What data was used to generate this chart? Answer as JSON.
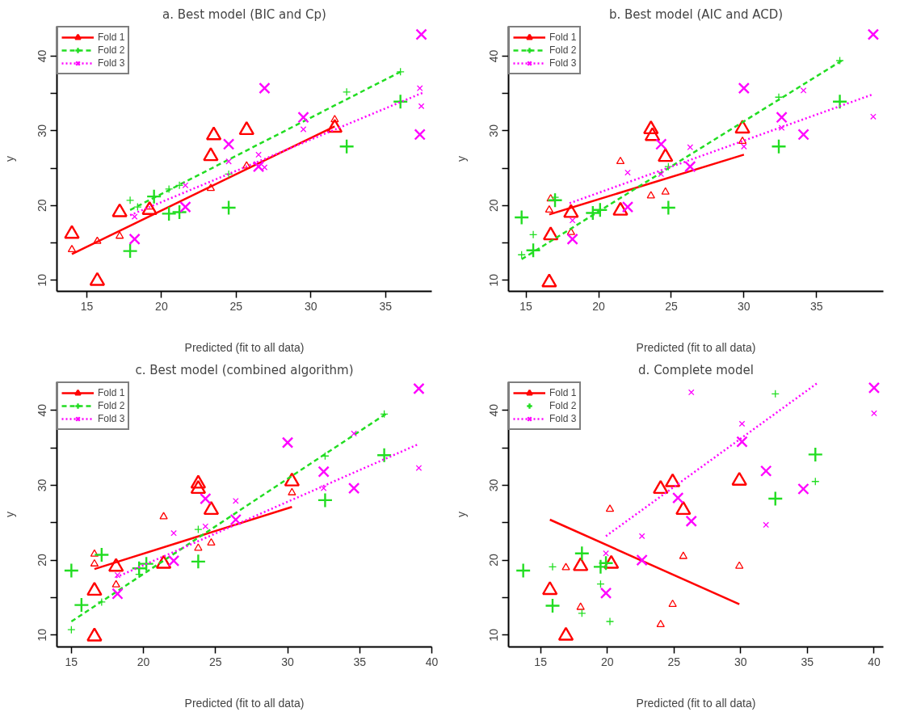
{
  "chart_data": [
    {
      "type": "scatter",
      "title": "a. Best model (BIC and Cp)",
      "xlabel": "Predicted (fit to all data)",
      "ylabel": "y",
      "xlim": [
        13.0,
        38.1
      ],
      "ylim": [
        8.5,
        44
      ],
      "xticks": [
        15,
        20,
        25,
        30,
        35
      ],
      "yticks": [
        10,
        {
          "value": 15,
          "label": null
        },
        20,
        {
          "value": 25,
          "label": null
        },
        30,
        {
          "value": 35,
          "label": null
        },
        40
      ],
      "legend": "top left",
      "grid": false,
      "series": [
        {
          "name": "Fold 1",
          "color": "#ff0000",
          "marker": "triangle",
          "x": [
            14.0,
            15.7,
            17.2,
            19.2,
            23.3,
            23.5,
            25.7,
            31.6
          ],
          "values": [
            16.2,
            9.9,
            19.1,
            19.4,
            26.6,
            29.4,
            30.1,
            30.4
          ]
        },
        {
          "color": "#ff0000",
          "marker": "triangle",
          "x": [
            14.0,
            15.7,
            17.2,
            19.2,
            23.3,
            25.7,
            31.6
          ],
          "values": [
            14.1,
            15.2,
            15.9,
            19.8,
            22.3,
            25.3,
            31.5
          ]
        },
        {
          "type": "line",
          "color": "#ff0000",
          "line_style": "solid",
          "x": [
            14.0,
            31.6
          ],
          "values": [
            13.5,
            30.6
          ]
        },
        {
          "name": "Fold 2",
          "color": "#22dd22",
          "marker": "plus",
          "x": [
            17.9,
            19.5,
            20.5,
            21.2,
            24.5,
            32.4,
            36.0
          ],
          "values": [
            13.9,
            21.2,
            18.9,
            19.1,
            19.7,
            27.9,
            33.9
          ]
        },
        {
          "color": "#22dd22",
          "marker": "plus",
          "x": [
            17.9,
            18.4,
            20.5,
            21.2,
            24.5,
            32.4,
            36.0
          ],
          "values": [
            20.7,
            19.8,
            22.2,
            22.7,
            24.2,
            35.2,
            37.9
          ]
        },
        {
          "type": "line",
          "color": "#22dd22",
          "line_style": "dashed",
          "x": [
            17.9,
            36.2
          ],
          "values": [
            19.4,
            38.1
          ]
        },
        {
          "name": "Fold 3",
          "color": "#ff00ff",
          "marker": "x",
          "x": [
            18.2,
            21.6,
            24.5,
            26.9,
            26.5,
            29.5,
            37.4,
            37.3
          ],
          "values": [
            15.5,
            19.8,
            28.2,
            35.7,
            25.2,
            31.8,
            42.9,
            29.5
          ]
        },
        {
          "color": "#ff00ff",
          "marker": "x",
          "x": [
            18.2,
            21.6,
            24.5,
            26.5,
            26.9,
            29.5,
            37.3,
            37.4
          ],
          "values": [
            18.5,
            22.7,
            25.9,
            26.8,
            25.1,
            30.2,
            35.7,
            33.3
          ]
        },
        {
          "type": "line",
          "color": "#ff00ff",
          "line_style": "dotted",
          "x": [
            17.9,
            37.5
          ],
          "values": [
            18.7,
            35.1
          ]
        }
      ]
    },
    {
      "type": "scatter",
      "title": "b. Best model (AIC and ACD)",
      "xlabel": "Predicted (fit to all data)",
      "ylabel": "y",
      "xlim": [
        13.8,
        39.6
      ],
      "ylim": [
        8.5,
        44
      ],
      "xticks": [
        15,
        20,
        25,
        30,
        35
      ],
      "yticks": [
        10,
        {
          "value": 15,
          "label": null
        },
        20,
        {
          "value": 25,
          "label": null
        },
        30,
        {
          "value": 35,
          "label": null
        },
        40
      ],
      "legend": "top left",
      "grid": false,
      "series": [
        {
          "name": "Fold 1",
          "color": "#ff0000",
          "marker": "triangle",
          "x": [
            16.6,
            16.7,
            18.1,
            21.5,
            23.6,
            23.7,
            24.6,
            29.9
          ],
          "values": [
            9.7,
            16.0,
            19.0,
            19.3,
            30.2,
            29.3,
            26.5,
            30.3
          ]
        },
        {
          "color": "#ff0000",
          "marker": "triangle",
          "x": [
            16.6,
            16.7,
            18.1,
            21.5,
            23.6,
            24.6,
            29.9
          ],
          "values": [
            19.4,
            20.9,
            16.4,
            25.9,
            21.3,
            21.8,
            28.6
          ]
        },
        {
          "type": "line",
          "color": "#ff0000",
          "line_style": "solid",
          "x": [
            16.6,
            30.0
          ],
          "values": [
            18.8,
            26.8
          ]
        },
        {
          "name": "Fold 2",
          "color": "#22dd22",
          "marker": "plus",
          "x": [
            14.7,
            15.5,
            17.0,
            19.6,
            20.1,
            24.8,
            32.4,
            36.6
          ],
          "values": [
            18.4,
            14.0,
            20.7,
            19.0,
            19.4,
            19.7,
            27.9,
            33.9
          ]
        },
        {
          "color": "#22dd22",
          "marker": "plus",
          "x": [
            14.7,
            15.5,
            17.0,
            24.8,
            32.4,
            36.6
          ],
          "values": [
            13.4,
            16.1,
            21.1,
            25.2,
            34.5,
            39.4
          ]
        },
        {
          "type": "line",
          "color": "#22dd22",
          "line_style": "dashed",
          "x": [
            14.7,
            36.9
          ],
          "values": [
            12.8,
            39.6
          ]
        },
        {
          "name": "Fold 3",
          "color": "#ff00ff",
          "marker": "x",
          "x": [
            18.2,
            22.0,
            24.3,
            26.3,
            30.0,
            32.6,
            34.1,
            38.9
          ],
          "values": [
            15.5,
            19.8,
            28.2,
            25.2,
            35.7,
            31.8,
            29.5,
            42.9
          ]
        },
        {
          "color": "#ff00ff",
          "marker": "x",
          "x": [
            18.2,
            22.0,
            24.3,
            26.3,
            30.0,
            32.6,
            34.1,
            38.9
          ],
          "values": [
            18.0,
            24.4,
            24.2,
            27.8,
            27.9,
            30.4,
            35.4,
            31.9
          ]
        },
        {
          "type": "line",
          "color": "#ff00ff",
          "line_style": "dotted",
          "x": [
            18.0,
            38.9
          ],
          "values": [
            20.3,
            34.9
          ]
        }
      ]
    },
    {
      "type": "scatter",
      "title": "c. Best model (combined algorithm)",
      "xlabel": "Predicted (fit to all data)",
      "ylabel": "y",
      "xlim": [
        14.0,
        40.0
      ],
      "ylim": [
        8.4,
        43.8
      ],
      "xticks": [
        15,
        20,
        25,
        30,
        35,
        40
      ],
      "yticks": [
        10,
        {
          "value": 15,
          "label": null
        },
        20,
        {
          "value": 25,
          "label": null
        },
        30,
        {
          "value": 35,
          "label": null
        },
        40
      ],
      "legend": "top left",
      "grid": false,
      "series": [
        {
          "name": "Fold 1",
          "color": "#ff0000",
          "marker": "triangle",
          "x": [
            16.6,
            16.6,
            18.1,
            21.4,
            23.8,
            23.8,
            24.7,
            30.3
          ],
          "values": [
            9.8,
            15.9,
            19.1,
            19.5,
            29.5,
            30.2,
            26.7,
            30.5
          ]
        },
        {
          "color": "#ff0000",
          "marker": "triangle",
          "x": [
            16.6,
            16.6,
            18.1,
            21.4,
            23.8,
            24.7,
            30.3
          ],
          "values": [
            20.8,
            19.5,
            16.7,
            25.8,
            21.6,
            22.3,
            29.0
          ]
        },
        {
          "type": "line",
          "color": "#ff0000",
          "line_style": "solid",
          "x": [
            16.6,
            30.3
          ],
          "values": [
            18.8,
            27.1
          ]
        },
        {
          "name": "Fold 2",
          "color": "#22dd22",
          "marker": "plus",
          "x": [
            15.0,
            15.7,
            17.1,
            19.7,
            20.2,
            23.8,
            32.6,
            36.7
          ],
          "values": [
            18.6,
            14.0,
            20.7,
            18.9,
            19.5,
            19.8,
            28.0,
            34.0
          ]
        },
        {
          "color": "#22dd22",
          "marker": "plus",
          "x": [
            15.0,
            17.1,
            19.7,
            23.8,
            32.6,
            36.7
          ],
          "values": [
            10.7,
            14.4,
            18.1,
            24.1,
            33.9,
            39.5
          ]
        },
        {
          "type": "line",
          "color": "#22dd22",
          "line_style": "dashed",
          "x": [
            15.0,
            36.8
          ],
          "values": [
            11.8,
            39.5
          ]
        },
        {
          "name": "Fold 3",
          "color": "#ff00ff",
          "marker": "x",
          "x": [
            18.2,
            22.1,
            24.3,
            26.4,
            30.0,
            32.5,
            34.6,
            39.1
          ],
          "values": [
            15.5,
            19.9,
            28.2,
            25.4,
            35.7,
            31.8,
            29.6,
            42.9
          ]
        },
        {
          "color": "#ff00ff",
          "marker": "x",
          "x": [
            18.2,
            22.1,
            24.3,
            26.4,
            32.5,
            34.6,
            39.1
          ],
          "values": [
            18.0,
            23.6,
            24.5,
            27.9,
            29.6,
            36.9,
            32.3
          ]
        },
        {
          "type": "line",
          "color": "#ff00ff",
          "line_style": "dotted",
          "x": [
            18.1,
            39.1
          ],
          "values": [
            17.7,
            35.5
          ]
        }
      ]
    },
    {
      "type": "scatter",
      "title": "d. Complete model",
      "xlabel": "Predicted (fit to all data)",
      "ylabel": "y",
      "xlim": [
        12.6,
        40.7
      ],
      "ylim": [
        8.4,
        43.8
      ],
      "xticks": [
        15,
        20,
        25,
        30,
        35,
        40
      ],
      "yticks": [
        10,
        {
          "value": 15,
          "label": null
        },
        20,
        {
          "value": 25,
          "label": null
        },
        30,
        {
          "value": 35,
          "label": null
        },
        40
      ],
      "legend": "top left",
      "grid": false,
      "series": [
        {
          "name": "Fold 1",
          "color": "#ff0000",
          "marker": "triangle",
          "x": [
            16.9,
            15.7,
            18.0,
            20.3,
            24.0,
            24.9,
            25.7,
            29.9
          ],
          "values": [
            9.9,
            16.0,
            19.2,
            19.5,
            29.5,
            30.4,
            26.7,
            30.6
          ]
        },
        {
          "color": "#ff0000",
          "marker": "triangle",
          "x": [
            16.9,
            18.0,
            20.2,
            24.0,
            24.9,
            25.7,
            29.9
          ],
          "values": [
            19.0,
            13.7,
            26.8,
            11.4,
            14.1,
            20.5,
            19.2
          ]
        },
        {
          "type": "line",
          "color": "#ff0000",
          "line_style": "solid",
          "x": [
            15.7,
            29.9
          ],
          "values": [
            25.4,
            14.1
          ]
        },
        {
          "name": "Fold 2",
          "color": "#22dd22",
          "marker": "plus",
          "x": [
            13.7,
            15.9,
            18.1,
            19.5,
            19.9,
            32.6,
            35.6
          ],
          "values": [
            18.6,
            13.9,
            20.9,
            19.1,
            19.6,
            28.2,
            34.1
          ]
        },
        {
          "color": "#22dd22",
          "marker": "plus",
          "x": [
            15.9,
            18.1,
            19.5,
            20.2,
            32.6,
            35.6
          ],
          "values": [
            19.1,
            12.9,
            16.8,
            11.8,
            42.2,
            30.5
          ]
        },
        {
          "name": "Fold 3",
          "color": "#ff00ff",
          "marker": "x",
          "x": [
            19.9,
            22.6,
            25.3,
            26.3,
            30.1,
            31.9,
            34.7,
            40.0
          ],
          "values": [
            15.6,
            20.0,
            28.3,
            25.2,
            35.8,
            31.9,
            29.5,
            43.0
          ]
        },
        {
          "color": "#ff00ff",
          "marker": "x",
          "x": [
            19.9,
            22.6,
            26.3,
            30.1,
            31.9,
            40.0
          ],
          "values": [
            20.9,
            23.2,
            42.4,
            38.2,
            24.7,
            39.6
          ]
        },
        {
          "type": "line",
          "color": "#ff00ff",
          "line_style": "dotted",
          "x": [
            19.9,
            35.8
          ],
          "values": [
            23.2,
            43.7
          ]
        }
      ]
    }
  ]
}
